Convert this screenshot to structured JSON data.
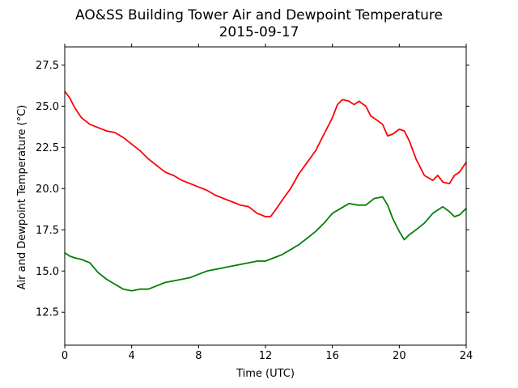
{
  "chart_data": {
    "type": "line",
    "title": "AO&SS Building Tower Air and Dewpoint Temperature",
    "subtitle": "2015-09-17",
    "xlabel": "Time (UTC)",
    "ylabel": "Air and Dewpoint Temperature (°C)",
    "xlim": [
      0,
      24
    ],
    "ylim": [
      10.5,
      28.6
    ],
    "xticks": [
      0,
      4,
      8,
      12,
      16,
      20,
      24
    ],
    "yticks": [
      12.5,
      15.0,
      17.5,
      20.0,
      22.5,
      25.0,
      27.5
    ],
    "xtick_labels": [
      "0",
      "4",
      "8",
      "12",
      "16",
      "20",
      "24"
    ],
    "ytick_labels": [
      "12.5",
      "15.0",
      "17.5",
      "20.0",
      "22.5",
      "25.0",
      "27.5"
    ],
    "grid": false,
    "legend": "none",
    "series": [
      {
        "color": "#ff0000",
        "x": [
          0,
          0.3,
          0.6,
          1.0,
          1.5,
          2.0,
          2.5,
          3.0,
          3.5,
          4.0,
          4.5,
          5.0,
          5.5,
          6.0,
          6.5,
          7.0,
          7.5,
          8.0,
          8.5,
          9.0,
          9.5,
          10.0,
          10.5,
          11.0,
          11.5,
          12.0,
          12.3,
          12.6,
          13.0,
          13.5,
          14.0,
          14.5,
          15.0,
          15.5,
          16.0,
          16.3,
          16.6,
          17.0,
          17.3,
          17.6,
          18.0,
          18.3,
          18.6,
          19.0,
          19.3,
          19.6,
          20.0,
          20.3,
          20.6,
          21.0,
          21.5,
          22.0,
          22.3,
          22.6,
          23.0,
          23.3,
          23.6,
          24.0
        ],
        "values": [
          25.9,
          25.5,
          24.9,
          24.3,
          23.9,
          23.7,
          23.5,
          23.4,
          23.1,
          22.7,
          22.3,
          21.8,
          21.4,
          21.0,
          20.8,
          20.5,
          20.3,
          20.1,
          19.9,
          19.6,
          19.4,
          19.2,
          19.0,
          18.9,
          18.5,
          18.3,
          18.3,
          18.7,
          19.3,
          20.0,
          20.9,
          21.6,
          22.3,
          23.3,
          24.3,
          25.1,
          25.4,
          25.3,
          25.1,
          25.3,
          25.0,
          24.4,
          24.2,
          23.9,
          23.2,
          23.3,
          23.6,
          23.5,
          22.9,
          21.8,
          20.8,
          20.5,
          20.8,
          20.4,
          20.3,
          20.8,
          21.0,
          21.6
        ]
      },
      {
        "color": "#008000",
        "x": [
          0,
          0.3,
          0.6,
          1.0,
          1.5,
          2.0,
          2.5,
          3.0,
          3.5,
          4.0,
          4.5,
          5.0,
          5.5,
          6.0,
          6.5,
          7.0,
          7.5,
          8.0,
          8.5,
          9.0,
          9.5,
          10.0,
          10.5,
          11.0,
          11.5,
          12.0,
          12.5,
          13.0,
          13.5,
          14.0,
          14.5,
          15.0,
          15.5,
          16.0,
          16.5,
          17.0,
          17.5,
          18.0,
          18.5,
          19.0,
          19.3,
          19.6,
          20.0,
          20.3,
          20.6,
          21.0,
          21.5,
          22.0,
          22.3,
          22.6,
          23.0,
          23.3,
          23.6,
          24.0
        ],
        "values": [
          16.1,
          15.9,
          15.8,
          15.7,
          15.5,
          14.9,
          14.5,
          14.2,
          13.9,
          13.8,
          13.9,
          13.9,
          14.1,
          14.3,
          14.4,
          14.5,
          14.6,
          14.8,
          15.0,
          15.1,
          15.2,
          15.3,
          15.4,
          15.5,
          15.6,
          15.6,
          15.8,
          16.0,
          16.3,
          16.6,
          17.0,
          17.4,
          17.9,
          18.5,
          18.8,
          19.1,
          19.0,
          19.0,
          19.4,
          19.5,
          19.0,
          18.2,
          17.4,
          16.9,
          17.2,
          17.5,
          17.9,
          18.5,
          18.7,
          18.9,
          18.6,
          18.3,
          18.4,
          18.8
        ]
      }
    ]
  }
}
